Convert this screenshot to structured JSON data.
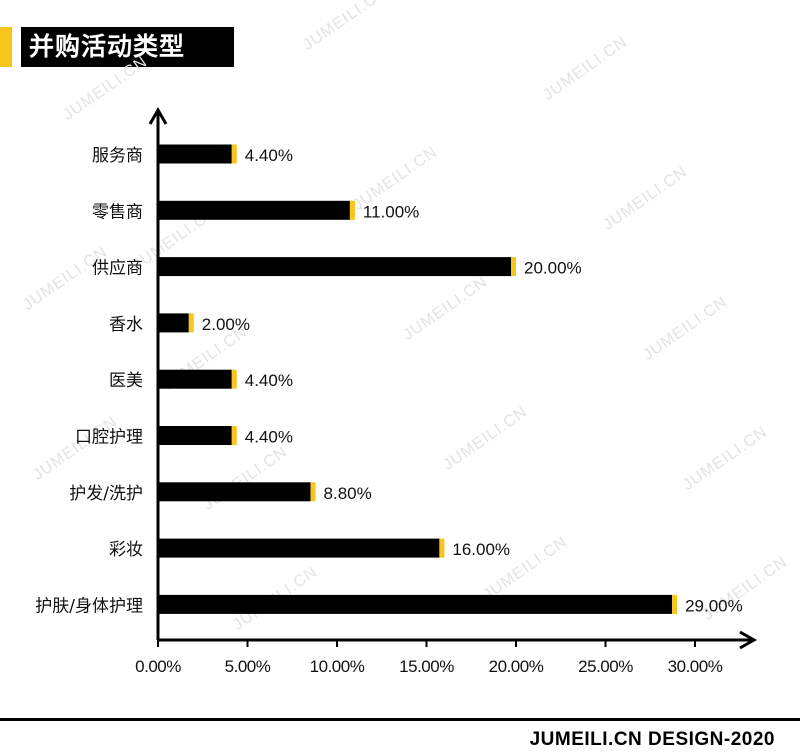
{
  "title": "并购活动类型",
  "watermark_text": "JUMEILI.CN",
  "footer": "JUMEILI.CN DESIGN-2020",
  "colors": {
    "bar": "#000000",
    "accent": "#f7c51e",
    "axis": "#000000",
    "text": "#111111"
  },
  "chart_data": {
    "type": "bar",
    "orientation": "horizontal",
    "categories": [
      "服务商",
      "零售商",
      "供应商",
      "香水",
      "医美",
      "口腔护理",
      "护发/洗护",
      "彩妆",
      "护肤/身体护理"
    ],
    "values": [
      4.4,
      11.0,
      20.0,
      2.0,
      4.4,
      4.4,
      8.8,
      16.0,
      29.0
    ],
    "value_labels": [
      "4.40%",
      "11.00%",
      "20.00%",
      "2.00%",
      "4.40%",
      "4.40%",
      "8.80%",
      "16.00%",
      "29.00%"
    ],
    "x_ticks": [
      0,
      5,
      10,
      15,
      20,
      25,
      30
    ],
    "x_tick_labels": [
      "0.00%",
      "5.00%",
      "10.00%",
      "15.00%",
      "20.00%",
      "25.00%",
      "30.00%"
    ],
    "xlim": [
      0,
      33
    ],
    "grid": false,
    "legend": "none"
  }
}
